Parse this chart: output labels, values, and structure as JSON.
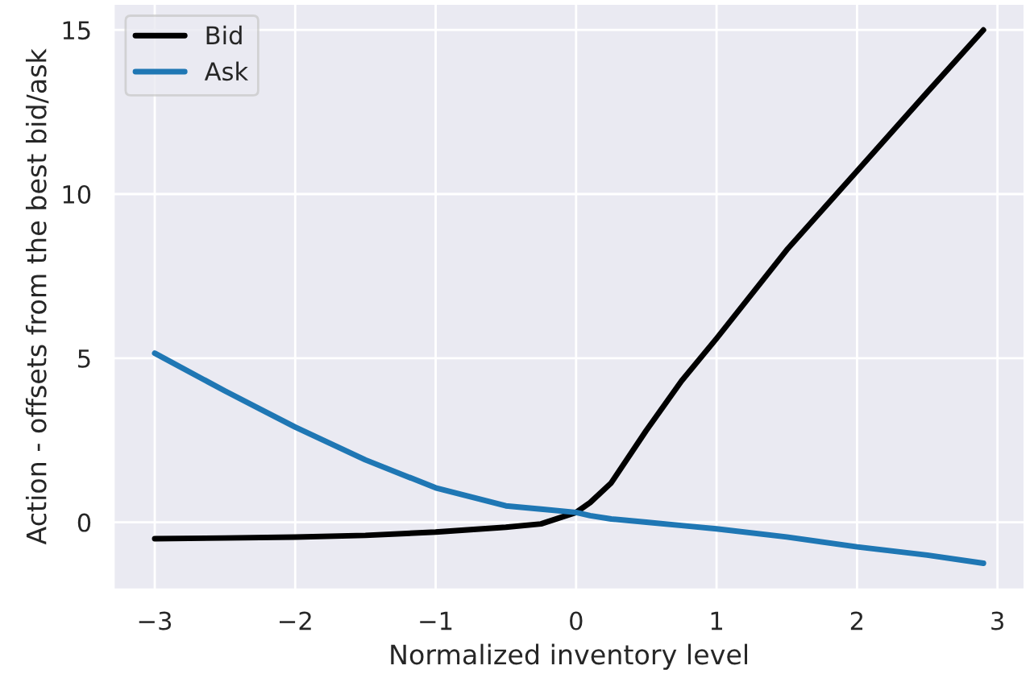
{
  "chart_data": {
    "type": "line",
    "xlabel": "Normalized inventory level",
    "ylabel": "Action - offsets from the best bid/ask",
    "x": [
      -3,
      -2.5,
      -2,
      -1.5,
      -1,
      -0.5,
      -0.25,
      0,
      0.1,
      0.25,
      0.5,
      0.75,
      1,
      1.5,
      2,
      2.5,
      2.9
    ],
    "series": [
      {
        "name": "Bid",
        "color": "#000000",
        "values": [
          -0.5,
          -0.48,
          -0.45,
          -0.4,
          -0.3,
          -0.15,
          -0.05,
          0.3,
          0.6,
          1.2,
          2.8,
          4.3,
          5.6,
          8.3,
          10.7,
          13.1,
          15
        ]
      },
      {
        "name": "Ask",
        "color": "#1f77b4",
        "values": [
          5.15,
          4.0,
          2.9,
          1.9,
          1.05,
          0.5,
          0.4,
          0.3,
          0.2,
          0.1,
          0.0,
          -0.1,
          -0.2,
          -0.45,
          -0.75,
          -1.0,
          -1.25
        ]
      }
    ],
    "xlim": [
      -3.295,
      3.195
    ],
    "xticks": [
      -3,
      -2,
      -1,
      0,
      1,
      2,
      3
    ],
    "ylim": [
      -2.06,
      15.81
    ],
    "yticks": [
      0,
      5,
      10,
      15
    ],
    "grid": true,
    "legend": "top left"
  }
}
